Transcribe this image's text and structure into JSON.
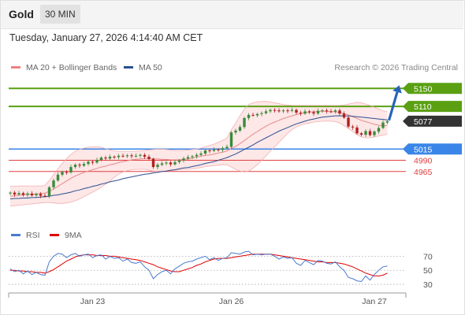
{
  "header": {
    "title": "Gold",
    "timeframe": "30 MIN"
  },
  "timestamp": "Tuesday, January 27, 2026 4:14:40 AM CET",
  "legend": {
    "bb": {
      "label": "MA 20 + Bollinger Bands",
      "color": "#f08080"
    },
    "ma50": {
      "label": "MA 50",
      "color": "#2a4f8f"
    },
    "credit": "Research © 2026 Trading Central"
  },
  "rsi_legend": {
    "rsi": {
      "label": "RSI",
      "color": "#4a7bd0"
    },
    "ma9": {
      "label": "9MA",
      "color": "#e00000"
    }
  },
  "colors": {
    "up": "#3a8a3a",
    "down": "#b02020",
    "resistance": "#5aa012",
    "pivot": "#3a86e8",
    "support": "#e04040",
    "last": "#333333",
    "arrow": "#2a63b8"
  },
  "chart_data": [
    {
      "type": "line",
      "subtype": "candlestick",
      "title": "",
      "ylim": [
        4870,
        5175
      ],
      "x_ticks": [
        {
          "label": "Jan 23",
          "index": 19
        },
        {
          "label": "Jan 26",
          "index": 51
        },
        {
          "label": "Jan 27",
          "index": 84
        }
      ],
      "levels": [
        {
          "value": 5150,
          "label": "5150",
          "kind": "resistance"
        },
        {
          "value": 5110,
          "label": "5110",
          "kind": "resistance"
        },
        {
          "value": 5077,
          "label": "5077",
          "kind": "last"
        },
        {
          "value": 5015,
          "label": "5015",
          "kind": "pivot"
        },
        {
          "value": 4990,
          "label": "4990",
          "kind": "support"
        },
        {
          "value": 4965,
          "label": "4965",
          "kind": "support"
        }
      ],
      "close": [
        4918,
        4914,
        4917,
        4913,
        4916,
        4912,
        4915,
        4911,
        4910,
        4930,
        4945,
        4958,
        4964,
        4963,
        4975,
        4980,
        4978,
        4982,
        4987,
        4985,
        4991,
        4996,
        4994,
        4998,
        4997,
        5000,
        4999,
        5001,
        4999,
        5000,
        5002,
        4998,
        4993,
        4975,
        4980,
        4983,
        4985,
        4981,
        4986,
        4990,
        4994,
        4997,
        4999,
        5002,
        5005,
        5012,
        5011,
        5014,
        5013,
        5017,
        5020,
        5052,
        5056,
        5064,
        5084,
        5091,
        5090,
        5093,
        5095,
        5099,
        5102,
        5101,
        5099,
        5101,
        5100,
        5102,
        5096,
        5094,
        5099,
        5097,
        5094,
        5100,
        5101,
        5099,
        5098,
        5101,
        5094,
        5085,
        5065,
        5063,
        5050,
        5047,
        5055,
        5046,
        5054,
        5062,
        5074,
        5077
      ],
      "ma20": [
        4910,
        4911,
        4912,
        4913,
        4914,
        4914,
        4915,
        4916,
        4917,
        4921,
        4926,
        4932,
        4938,
        4944,
        4950,
        4955,
        4959,
        4963,
        4966,
        4969,
        4972,
        4975,
        4977,
        4980,
        4982,
        4985,
        4987,
        4989,
        4991,
        4992,
        4993,
        4994,
        4994,
        4993,
        4993,
        4992,
        4992,
        4991,
        4991,
        4991,
        4992,
        4993,
        4995,
        4997,
        4999,
        5001,
        5002,
        5004,
        5006,
        5008,
        5011,
        5016,
        5021,
        5027,
        5034,
        5041,
        5048,
        5054,
        5060,
        5066,
        5071,
        5075,
        5079,
        5083,
        5086,
        5089,
        5092,
        5094,
        5096,
        5097,
        5098,
        5099,
        5099,
        5099,
        5098,
        5098,
        5096,
        5094,
        5091,
        5087,
        5083,
        5079,
        5076,
        5073,
        5070,
        5068,
        5067,
        5067
      ],
      "bb_upper": [
        4932,
        4932,
        4933,
        4933,
        4933,
        4933,
        4933,
        4933,
        4934,
        4945,
        4958,
        4971,
        4983,
        4994,
        5003,
        5010,
        5014,
        5017,
        5019,
        5020,
        5020,
        5019,
        5016,
        5013,
        5011,
        5010,
        5010,
        5010,
        5010,
        5010,
        5011,
        5012,
        5013,
        5014,
        5015,
        5015,
        5014,
        5013,
        5012,
        5012,
        5012,
        5013,
        5014,
        5015,
        5017,
        5020,
        5023,
        5026,
        5030,
        5034,
        5040,
        5058,
        5073,
        5089,
        5104,
        5114,
        5118,
        5120,
        5121,
        5121,
        5120,
        5118,
        5116,
        5114,
        5113,
        5112,
        5112,
        5112,
        5112,
        5112,
        5112,
        5112,
        5112,
        5112,
        5112,
        5112,
        5112,
        5113,
        5115,
        5117,
        5119,
        5118,
        5115,
        5112,
        5108,
        5104,
        5100,
        5098
      ],
      "bb_lower": [
        4888,
        4889,
        4890,
        4891,
        4892,
        4893,
        4894,
        4895,
        4896,
        4896,
        4895,
        4894,
        4894,
        4895,
        4897,
        4900,
        4904,
        4909,
        4914,
        4919,
        4924,
        4930,
        4937,
        4944,
        4952,
        4959,
        4964,
        4967,
        4969,
        4970,
        4970,
        4970,
        4968,
        4966,
        4965,
        4965,
        4966,
        4967,
        4968,
        4969,
        4970,
        4970,
        4971,
        4972,
        4974,
        4976,
        4977,
        4978,
        4979,
        4980,
        4980,
        4975,
        4970,
        4966,
        4964,
        4966,
        4972,
        4980,
        4990,
        5000,
        5010,
        5020,
        5030,
        5040,
        5050,
        5058,
        5064,
        5068,
        5071,
        5073,
        5075,
        5076,
        5077,
        5077,
        5077,
        5076,
        5073,
        5067,
        5061,
        5054,
        5047,
        5042,
        5040,
        5040,
        5042,
        5044,
        5046,
        5048
      ],
      "ma50": [
        4904,
        4905,
        4905,
        4906,
        4906,
        4907,
        4907,
        4908,
        4909,
        4910,
        4912,
        4913,
        4915,
        4917,
        4919,
        4922,
        4924,
        4927,
        4929,
        4932,
        4934,
        4937,
        4939,
        4942,
        4944,
        4946,
        4949,
        4951,
        4953,
        4955,
        4957,
        4959,
        4960,
        4962,
        4963,
        4965,
        4966,
        4968,
        4969,
        4971,
        4973,
        4974,
        4976,
        4978,
        4980,
        4983,
        4985,
        4987,
        4990,
        4993,
        4996,
        5000,
        5004,
        5009,
        5014,
        5019,
        5024,
        5030,
        5035,
        5040,
        5045,
        5050,
        5055,
        5059,
        5063,
        5067,
        5071,
        5074,
        5077,
        5080,
        5082,
        5084,
        5086,
        5087,
        5088,
        5089,
        5089,
        5089,
        5089,
        5088,
        5087,
        5086,
        5085,
        5084,
        5083,
        5082,
        5081,
        5080
      ]
    },
    {
      "type": "line",
      "title": "RSI",
      "ylim": [
        20,
        85
      ],
      "y_ticks": [
        70,
        50,
        30
      ],
      "series": [
        {
          "name": "RSI",
          "values": [
            52,
            48,
            50,
            45,
            49,
            44,
            47,
            44,
            43,
            62,
            70,
            74,
            73,
            68,
            72,
            74,
            70,
            72,
            73,
            68,
            71,
            72,
            66,
            70,
            67,
            68,
            63,
            66,
            61,
            60,
            62,
            55,
            50,
            38,
            44,
            48,
            50,
            45,
            52,
            56,
            60,
            62,
            63,
            66,
            68,
            70,
            65,
            68,
            64,
            67,
            68,
            75,
            74,
            73,
            76,
            77,
            72,
            73,
            72,
            73,
            73,
            70,
            66,
            69,
            67,
            68,
            60,
            57,
            64,
            61,
            58,
            64,
            63,
            60,
            59,
            62,
            55,
            50,
            40,
            38,
            35,
            34,
            42,
            36,
            44,
            50,
            55,
            56
          ]
        },
        {
          "name": "9MA",
          "values": [
            50,
            50,
            49,
            49,
            48,
            48,
            47,
            47,
            46,
            48,
            51,
            55,
            59,
            63,
            66,
            69,
            71,
            72,
            72,
            72,
            71,
            71,
            71,
            70,
            70,
            69,
            68,
            67,
            66,
            65,
            64,
            62,
            60,
            58,
            55,
            53,
            51,
            49,
            48,
            48,
            50,
            52,
            54,
            57,
            59,
            62,
            64,
            66,
            67,
            67,
            67,
            68,
            69,
            70,
            71,
            72,
            73,
            73,
            73,
            73,
            73,
            72,
            71,
            70,
            69,
            68,
            67,
            66,
            65,
            64,
            63,
            62,
            62,
            61,
            61,
            61,
            60,
            59,
            57,
            55,
            52,
            49,
            46,
            44,
            42,
            42,
            43,
            46
          ]
        }
      ]
    }
  ]
}
